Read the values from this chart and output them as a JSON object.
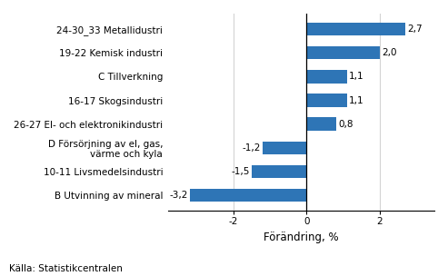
{
  "categories": [
    "B Utvinning av mineral",
    "10-11 Livsmedelsindustri",
    "D Försörjning av el, gas,\nvärme och kyla",
    "26-27 El- och elektronikindustri",
    "16-17 Skogsindustri",
    "C Tillverkning",
    "19-22 Kemisk industri",
    "24-30_33 Metallidustri"
  ],
  "values": [
    -3.2,
    -1.5,
    -1.2,
    0.8,
    1.1,
    1.1,
    2.0,
    2.7
  ],
  "bar_color": "#2E75B6",
  "xlabel": "Förändring, %",
  "xlim": [
    -3.8,
    3.5
  ],
  "xticks": [
    -2,
    0,
    2
  ],
  "source": "Källa: Statistikcentralen",
  "value_labels": [
    "-3,2",
    "-1,5",
    "-1,2",
    "0,8",
    "1,1",
    "1,1",
    "2,0",
    "2,7"
  ],
  "bar_height": 0.55,
  "label_fontsize": 7.5,
  "tick_fontsize": 7.5,
  "xlabel_fontsize": 8.5,
  "source_fontsize": 7.5
}
